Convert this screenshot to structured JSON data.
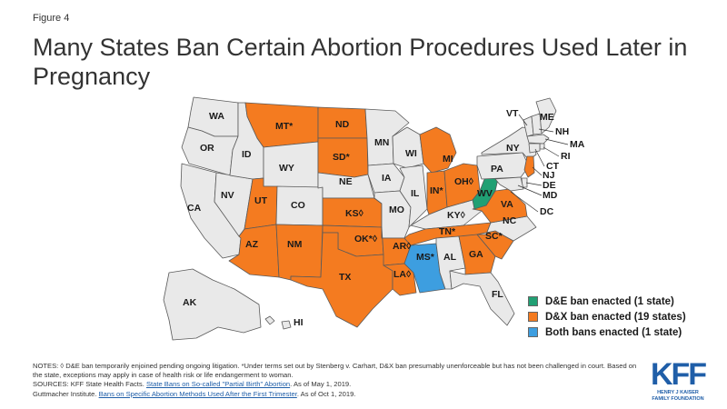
{
  "figure_label": "Figure 4",
  "title": "Many States Ban Certain Abortion Procedures Used Later in Pregnancy",
  "colors": {
    "none": "#e9e9e9",
    "de_ban": "#21a074",
    "dx_ban": "#f47b20",
    "both": "#3d9ee0",
    "border": "#5a5a5a"
  },
  "legend": [
    {
      "key": "de_ban",
      "label": "D&E ban enacted (1 state)"
    },
    {
      "key": "dx_ban",
      "label": "D&X ban enacted (19 states)"
    },
    {
      "key": "both",
      "label": "Both bans enacted (1 state)"
    }
  ],
  "states": {
    "WA": {
      "label": "WA",
      "status": "none"
    },
    "OR": {
      "label": "OR",
      "status": "none"
    },
    "CA": {
      "label": "CA",
      "status": "none"
    },
    "NV": {
      "label": "NV",
      "status": "none"
    },
    "ID": {
      "label": "ID",
      "status": "none"
    },
    "MT": {
      "label": "MT*",
      "status": "dx_ban"
    },
    "WY": {
      "label": "WY",
      "status": "none"
    },
    "UT": {
      "label": "UT",
      "status": "dx_ban"
    },
    "AZ": {
      "label": "AZ",
      "status": "dx_ban"
    },
    "CO": {
      "label": "CO",
      "status": "none"
    },
    "NM": {
      "label": "NM",
      "status": "dx_ban"
    },
    "ND": {
      "label": "ND",
      "status": "dx_ban"
    },
    "SD": {
      "label": "SD*",
      "status": "dx_ban"
    },
    "NE": {
      "label": "NE",
      "status": "none"
    },
    "KS": {
      "label": "KS◊",
      "status": "dx_ban"
    },
    "OK": {
      "label": "OK*◊",
      "status": "dx_ban"
    },
    "TX": {
      "label": "TX",
      "status": "dx_ban"
    },
    "MN": {
      "label": "MN",
      "status": "none"
    },
    "IA": {
      "label": "IA",
      "status": "none"
    },
    "MO": {
      "label": "MO",
      "status": "none"
    },
    "AR": {
      "label": "AR◊",
      "status": "dx_ban"
    },
    "LA": {
      "label": "LA◊",
      "status": "dx_ban"
    },
    "WI": {
      "label": "WI",
      "status": "none"
    },
    "IL": {
      "label": "IL",
      "status": "none"
    },
    "MS": {
      "label": "MS*",
      "status": "both"
    },
    "MI": {
      "label": "MI",
      "status": "dx_ban"
    },
    "IN": {
      "label": "IN*",
      "status": "dx_ban"
    },
    "KY": {
      "label": "KY◊",
      "status": "none"
    },
    "TN": {
      "label": "TN*",
      "status": "dx_ban"
    },
    "AL": {
      "label": "AL",
      "status": "none"
    },
    "OH": {
      "label": "OH◊",
      "status": "dx_ban"
    },
    "GA": {
      "label": "GA",
      "status": "dx_ban"
    },
    "FL": {
      "label": "FL",
      "status": "none"
    },
    "SC": {
      "label": "SC*",
      "status": "dx_ban"
    },
    "NC": {
      "label": "NC",
      "status": "none"
    },
    "VA": {
      "label": "VA",
      "status": "dx_ban"
    },
    "WV": {
      "label": "WV",
      "status": "de_ban"
    },
    "PA": {
      "label": "PA",
      "status": "none"
    },
    "NY": {
      "label": "NY",
      "status": "none"
    },
    "VT": {
      "label": "VT",
      "status": "none"
    },
    "NH": {
      "label": "NH",
      "status": "none"
    },
    "ME": {
      "label": "ME",
      "status": "none"
    },
    "MA": {
      "label": "MA",
      "status": "none"
    },
    "RI": {
      "label": "RI",
      "status": "none"
    },
    "CT": {
      "label": "CT",
      "status": "none"
    },
    "NJ": {
      "label": "NJ",
      "status": "dx_ban"
    },
    "DE": {
      "label": "DE",
      "status": "none"
    },
    "MD": {
      "label": "MD",
      "status": "none"
    },
    "DC": {
      "label": "DC",
      "status": "none"
    },
    "AK": {
      "label": "AK",
      "status": "none"
    },
    "HI": {
      "label": "HI",
      "status": "none"
    }
  },
  "notes": {
    "line1": "NOTES: ◊ D&E ban temporarily enjoined pending ongoing litigation. *Under terms set out by Stenberg v. Carhart, D&X ban presumably unenforceable but has not been challenged in court. Based on the state, exceptions may apply in case of health risk or life endangerment to woman.",
    "sources_prefix": "SOURCES: KFF State Health Facts.",
    "sources_link1": "State Bans on So-called \"Partial Birth\" Abortion",
    "sources_suffix1": ". As of May 1, 2019.",
    "sources_prefix2": "Guttmacher Institute.",
    "sources_link2": "Bans on Specific Abortion Methods Used After the First Trimester",
    "sources_suffix2": ". As of Oct 1, 2019."
  },
  "logo": {
    "mark": "KFF",
    "line1": "HENRY J KAISER",
    "line2": "FAMILY FOUNDATION"
  }
}
